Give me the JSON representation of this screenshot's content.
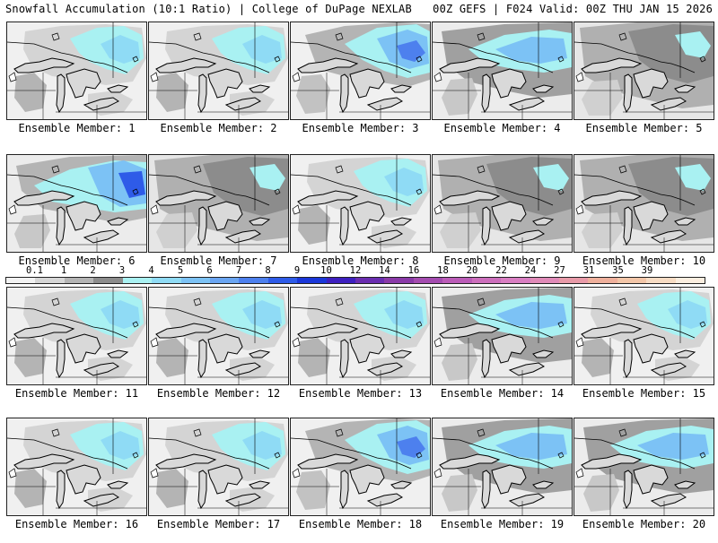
{
  "header": {
    "left_title": "Snowfall Accumulation (10:1 Ratio) | College of DuPage NEXLAB",
    "right_title": "00Z GEFS | F024 Valid: 00Z THU JAN 15 2026"
  },
  "scale": {
    "ticks": [
      "0.1",
      "1",
      "2",
      "3",
      "4",
      "5",
      "6",
      "7",
      "8",
      "9",
      "10",
      "12",
      "14",
      "16",
      "18",
      "20",
      "22",
      "24",
      "27",
      "31",
      "35",
      "39"
    ],
    "colors": [
      "#f2f2f2",
      "#d6d6d6",
      "#b4b4b4",
      "#8c8c8c",
      "#a9f1f2",
      "#8fdbf5",
      "#7cc2f5",
      "#6aa5f2",
      "#4d80ee",
      "#2e5be8",
      "#1a37d9",
      "#3d1fbf",
      "#6a2db0",
      "#8a3aa8",
      "#a44cb0",
      "#bb5cb8",
      "#cc6ebc",
      "#d97ec2",
      "#e08ab8",
      "#e89aa8",
      "#efb09c",
      "#f3c6a8",
      "#f7dcc4",
      "#fbeee0"
    ]
  },
  "members": [
    {
      "label": "Ensemble Member: 1",
      "theme": "light-blue-ne"
    },
    {
      "label": "Ensemble Member: 2",
      "theme": "light-blue-ne"
    },
    {
      "label": "Ensemble Member: 3",
      "theme": "blue-ne"
    },
    {
      "label": "Ensemble Member: 4",
      "theme": "blue-north"
    },
    {
      "label": "Ensemble Member: 5",
      "theme": "gray-heavy"
    },
    {
      "label": "Ensemble Member: 6",
      "theme": "blue-strong"
    },
    {
      "label": "Ensemble Member: 7",
      "theme": "gray-heavy"
    },
    {
      "label": "Ensemble Member: 8",
      "theme": "light-blue-ne"
    },
    {
      "label": "Ensemble Member: 9",
      "theme": "gray-heavy"
    },
    {
      "label": "Ensemble Member: 10",
      "theme": "gray-heavy"
    },
    {
      "label": "Ensemble Member: 11",
      "theme": "light-blue-ne"
    },
    {
      "label": "Ensemble Member: 12",
      "theme": "light-blue-ne"
    },
    {
      "label": "Ensemble Member: 13",
      "theme": "light-blue-ne"
    },
    {
      "label": "Ensemble Member: 14",
      "theme": "blue-north"
    },
    {
      "label": "Ensemble Member: 15",
      "theme": "light-blue-ne"
    },
    {
      "label": "Ensemble Member: 16",
      "theme": "light-blue-ne"
    },
    {
      "label": "Ensemble Member: 17",
      "theme": "light-blue-ne"
    },
    {
      "label": "Ensemble Member: 18",
      "theme": "blue-ne"
    },
    {
      "label": "Ensemble Member: 19",
      "theme": "blue-north"
    },
    {
      "label": "Ensemble Member: 20",
      "theme": "blue-north"
    }
  ]
}
